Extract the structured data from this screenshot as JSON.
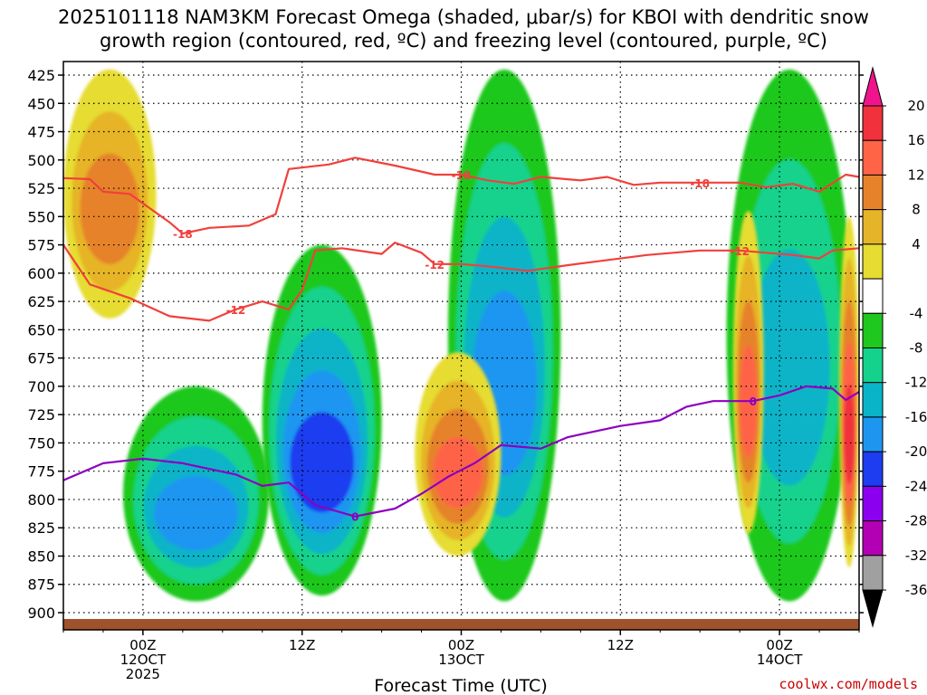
{
  "chart_data": {
    "type": "heatmap",
    "title_line1": "2025101118 NAM3KM Forecast Omega (shaded, μbar/s) for KBOI with dendritic snow",
    "title_line2": "growth region (contoured, red, ºC) and freezing level (contoured, purple, ºC)",
    "xlabel": "Forecast Time (UTC)",
    "credit": "coolwx.com/models",
    "y_ticks": [
      425,
      450,
      475,
      500,
      525,
      550,
      575,
      600,
      625,
      650,
      675,
      700,
      725,
      750,
      775,
      800,
      825,
      850,
      875,
      900
    ],
    "x_ticks": [
      {
        "t": 6,
        "lines": [
          "00Z",
          "12OCT",
          "2025"
        ]
      },
      {
        "t": 18,
        "lines": [
          "12Z"
        ]
      },
      {
        "t": 30,
        "lines": [
          "00Z",
          "13OCT"
        ]
      },
      {
        "t": 42,
        "lines": [
          "12Z"
        ]
      },
      {
        "t": 54,
        "lines": [
          "00Z",
          "14OCT"
        ]
      }
    ],
    "x_range_hours": [
      0,
      60
    ],
    "colorbar": {
      "ticks": [
        20,
        16,
        12,
        8,
        4,
        -4,
        -8,
        -12,
        -16,
        -20,
        -24,
        -28,
        -32,
        -36
      ],
      "bins": [
        {
          "from": 16,
          "to": 20,
          "color": "#f0323c"
        },
        {
          "from": 12,
          "to": 16,
          "color": "#ff6446"
        },
        {
          "from": 8,
          "to": 12,
          "color": "#e6822a"
        },
        {
          "from": 4,
          "to": 8,
          "color": "#e6b428"
        },
        {
          "from": 0,
          "to": 4,
          "color": "#e6dc32"
        },
        {
          "from": -4,
          "to": 0,
          "color": "#ffffff"
        },
        {
          "from": -8,
          "to": -4,
          "color": "#1ec81e"
        },
        {
          "from": -12,
          "to": -8,
          "color": "#14d28c"
        },
        {
          "from": -16,
          "to": -12,
          "color": "#0ab4c8"
        },
        {
          "from": -20,
          "to": -16,
          "color": "#1e96f0"
        },
        {
          "from": -24,
          "to": -20,
          "color": "#1e3cf0"
        },
        {
          "from": -28,
          "to": -24,
          "color": "#8c00f0"
        },
        {
          "from": -32,
          "to": -28,
          "color": "#b400b4"
        },
        {
          "from": -36,
          "to": -32,
          "color": "#a0a0a0"
        }
      ],
      "top_arrow_color": "#f0148c",
      "bottom_arrow_color": "#000000"
    },
    "omega_features": [
      {
        "label": "ascent band early",
        "t_start": 4.5,
        "t_end": 15.5,
        "p_top": 700,
        "p_bottom": 890,
        "min": -20
      },
      {
        "label": "ascent core 12Z",
        "t_start": 15.0,
        "t_end": 24.0,
        "p_top": 575,
        "p_bottom": 885,
        "min": -24
      },
      {
        "label": "ascent column 13OCT",
        "t_start": 29.0,
        "t_end": 37.5,
        "p_top": 420,
        "p_bottom": 890,
        "min": -20
      },
      {
        "label": "ascent column 14OCT",
        "t_start": 50.0,
        "t_end": 59.5,
        "p_top": 420,
        "p_bottom": 890,
        "min": -16
      },
      {
        "label": "subsidence 12OCT",
        "t_start": 0,
        "t_end": 7,
        "p_top": 420,
        "p_bottom": 640,
        "max": 12
      },
      {
        "label": "subsidence 13OCT",
        "t_start": 26.5,
        "t_end": 33.0,
        "p_top": 670,
        "p_bottom": 850,
        "max": 16
      },
      {
        "label": "subsidence 14OCT",
        "t_start": 50.5,
        "t_end": 52.8,
        "p_top": 545,
        "p_bottom": 830,
        "max": 16
      },
      {
        "label": "subsidence late",
        "t_start": 58.5,
        "t_end": 60,
        "p_top": 550,
        "p_bottom": 860,
        "max": 20
      }
    ],
    "contours": {
      "dgz_minus18": {
        "color": "#f0403c",
        "label": "-18",
        "points": [
          [
            0,
            516
          ],
          [
            2,
            517
          ],
          [
            3,
            528
          ],
          [
            5,
            530
          ],
          [
            8,
            555
          ],
          [
            9,
            565
          ],
          [
            11,
            560
          ],
          [
            14,
            558
          ],
          [
            16,
            548
          ],
          [
            17,
            508
          ],
          [
            20,
            504
          ],
          [
            22,
            498
          ],
          [
            25,
            505
          ],
          [
            28,
            513
          ],
          [
            30,
            513
          ],
          [
            32,
            518
          ],
          [
            34,
            521
          ],
          [
            36,
            515
          ],
          [
            39,
            518
          ],
          [
            41,
            515
          ],
          [
            43,
            522
          ],
          [
            45,
            520
          ],
          [
            48,
            520
          ],
          [
            51,
            520
          ],
          [
            53,
            524
          ],
          [
            55,
            521
          ],
          [
            57,
            528
          ],
          [
            59,
            513
          ],
          [
            60,
            515
          ]
        ]
      },
      "dgz_minus12": {
        "color": "#f0403c",
        "label": "-12",
        "points": [
          [
            0,
            575
          ],
          [
            2,
            610
          ],
          [
            5,
            622
          ],
          [
            8,
            638
          ],
          [
            11,
            642
          ],
          [
            13,
            632
          ],
          [
            15,
            625
          ],
          [
            17,
            632
          ],
          [
            18,
            615
          ],
          [
            19,
            580
          ],
          [
            21,
            578
          ],
          [
            24,
            583
          ],
          [
            25,
            573
          ],
          [
            27,
            582
          ],
          [
            28,
            592
          ],
          [
            30,
            592
          ],
          [
            32,
            594
          ],
          [
            35,
            598
          ],
          [
            38,
            593
          ],
          [
            40,
            590
          ],
          [
            44,
            584
          ],
          [
            48,
            580
          ],
          [
            51,
            580
          ],
          [
            55,
            584
          ],
          [
            57,
            587
          ],
          [
            58,
            580
          ],
          [
            60,
            578
          ]
        ]
      },
      "freezing_level": {
        "color": "#8c00c0",
        "label": "0",
        "points": [
          [
            0,
            783
          ],
          [
            3,
            768
          ],
          [
            6,
            764
          ],
          [
            9,
            768
          ],
          [
            13,
            778
          ],
          [
            15,
            788
          ],
          [
            17,
            785
          ],
          [
            19,
            805
          ],
          [
            22,
            815
          ],
          [
            25,
            808
          ],
          [
            27,
            795
          ],
          [
            29,
            780
          ],
          [
            31,
            768
          ],
          [
            33,
            752
          ],
          [
            36,
            755
          ],
          [
            38,
            745
          ],
          [
            40,
            740
          ],
          [
            42,
            735
          ],
          [
            45,
            730
          ],
          [
            47,
            718
          ],
          [
            49,
            713
          ],
          [
            52,
            713
          ],
          [
            54,
            708
          ],
          [
            56,
            700
          ],
          [
            58,
            702
          ],
          [
            59,
            712
          ],
          [
            60,
            705
          ]
        ]
      }
    },
    "terrain_color": "#a0522d"
  }
}
